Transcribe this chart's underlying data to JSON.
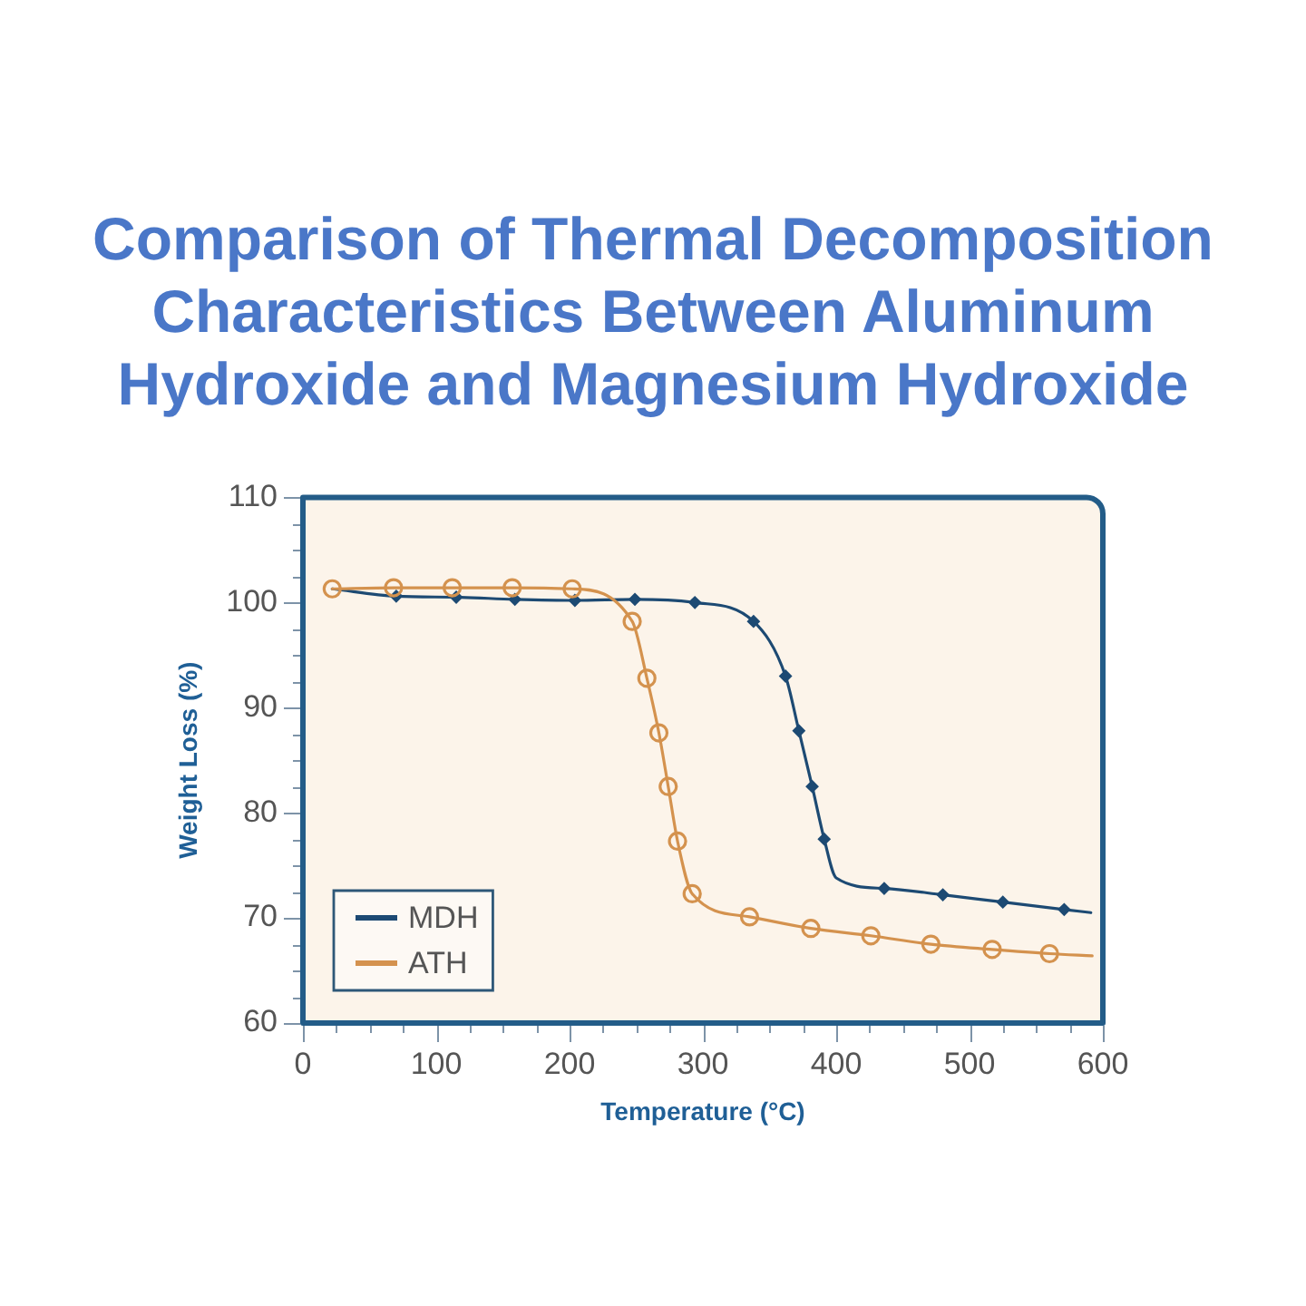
{
  "chart_data": {
    "type": "line",
    "title": "Comparison of Thermal Decomposition Characteristics Between Aluminum Hydroxide and Magnesium Hydroxide",
    "xlabel": "Temperature (°C)",
    "ylabel": "Weight Loss (%)",
    "xlim": [
      0,
      600
    ],
    "xticks": [
      0,
      {
        "value": 25,
        "label": null
      },
      {
        "value": 50,
        "label": null
      },
      {
        "value": 75,
        "label": null
      },
      100,
      {
        "value": 125,
        "label": null
      },
      {
        "value": 150,
        "label": null
      },
      {
        "value": 175,
        "label": null
      },
      200,
      {
        "value": 225,
        "label": null
      },
      {
        "value": 250,
        "label": null
      },
      {
        "value": 275,
        "label": null
      },
      300,
      {
        "value": 325,
        "label": null
      },
      {
        "value": 350,
        "label": null
      },
      {
        "value": 375,
        "label": null
      },
      400,
      {
        "value": 425,
        "label": null
      },
      {
        "value": 450,
        "label": null
      },
      {
        "value": 475,
        "label": null
      },
      500,
      {
        "value": 525,
        "label": null
      },
      {
        "value": 550,
        "label": null
      },
      {
        "value": 575,
        "label": null
      },
      600
    ],
    "ylim": [
      60,
      110
    ],
    "yticks": [
      60,
      {
        "value": 62.5,
        "label": null
      },
      {
        "value": 65,
        "label": null
      },
      {
        "value": 67.5,
        "label": null
      },
      70,
      {
        "value": 72.5,
        "label": null
      },
      {
        "value": 75,
        "label": null
      },
      {
        "value": 77.5,
        "label": null
      },
      80,
      {
        "value": 82.5,
        "label": null
      },
      {
        "value": 85,
        "label": null
      },
      {
        "value": 87.5,
        "label": null
      },
      90,
      {
        "value": 92.5,
        "label": null
      },
      {
        "value": 95,
        "label": null
      },
      {
        "value": 97.5,
        "label": null
      },
      100,
      {
        "value": 102.5,
        "label": null
      },
      {
        "value": 105,
        "label": null
      },
      {
        "value": 107.5,
        "label": null
      },
      110
    ],
    "legend": "bottom left",
    "series": [
      {
        "name": "MDH",
        "color": "#1d4a73",
        "marker": "none",
        "x": [
          22,
          70,
          115,
          159,
          204,
          249,
          294,
          338,
          362,
          372,
          382,
          391,
          400,
          436,
          480,
          525,
          571,
          591
        ],
        "values": [
          101.3,
          100.6,
          100.5,
          100.3,
          100.2,
          100.3,
          100.0,
          98.2,
          93.0,
          87.8,
          82.5,
          77.5,
          73.8,
          72.8,
          72.2,
          71.5,
          70.8,
          70.5
        ]
      },
      {
        "name": "ATH",
        "color": "#d4924e",
        "marker": "none",
        "x": [
          22,
          68,
          112,
          157,
          202,
          247,
          258,
          267,
          274,
          281,
          292,
          335,
          381,
          426,
          471,
          517,
          560,
          592
        ],
        "values": [
          101.3,
          101.4,
          101.4,
          101.4,
          101.3,
          98.2,
          92.8,
          87.6,
          82.5,
          77.3,
          72.3,
          70.1,
          69.0,
          68.3,
          67.5,
          67.0,
          66.6,
          66.4
        ]
      },
      {
        "type": "scatter",
        "color": "#1d4a73",
        "marker": "diamond",
        "x": [
          70,
          115,
          159,
          204,
          249,
          294,
          338,
          362,
          372,
          382,
          391,
          436,
          480,
          525,
          571
        ],
        "values": [
          100.6,
          100.5,
          100.3,
          100.2,
          100.3,
          100.0,
          98.2,
          93.0,
          87.8,
          82.5,
          77.5,
          72.8,
          72.2,
          71.5,
          70.8
        ]
      },
      {
        "type": "scatter",
        "color": "#d4924e",
        "marker": "circle",
        "x": [
          22,
          68,
          112,
          157,
          202,
          247,
          258,
          267,
          274,
          281,
          292,
          335,
          381,
          426,
          471,
          517,
          560
        ],
        "values": [
          101.3,
          101.4,
          101.4,
          101.4,
          101.3,
          98.2,
          92.8,
          87.6,
          82.5,
          77.3,
          72.3,
          70.1,
          69.0,
          68.3,
          67.5,
          67.0,
          66.6
        ]
      }
    ]
  }
}
